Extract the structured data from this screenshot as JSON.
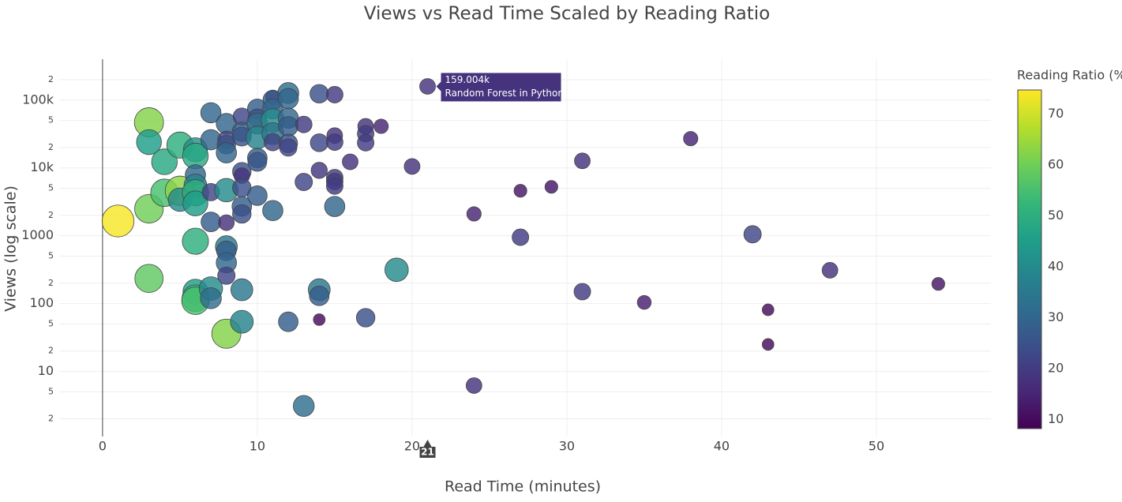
{
  "chart_data": {
    "type": "scatter",
    "title": "Views vs Read Time Scaled by Reading Ratio",
    "x_label": "Read Time (minutes)",
    "y_label": "Views (log scale)",
    "colorbar_title": "Reading Ratio (%",
    "log_y": true,
    "grid": true,
    "colorscale": "viridis",
    "xlim": [
      -2.8,
      57.4
    ],
    "xticks": [
      0,
      10,
      20,
      30,
      40,
      50
    ],
    "ylim": [
      1.1,
      400000
    ],
    "yticks": [
      2,
      5,
      10,
      {
        "value": 20,
        "label": "2"
      },
      {
        "value": 50,
        "label": "5"
      },
      100,
      {
        "value": 200,
        "label": "2"
      },
      {
        "value": 500,
        "label": "5"
      },
      1000,
      {
        "value": 2000,
        "label": "2"
      },
      {
        "value": 5000,
        "label": "5"
      },
      {
        "value": 10000,
        "label": "10k"
      },
      {
        "value": 20000,
        "label": "2"
      },
      {
        "value": 50000,
        "label": "5"
      },
      {
        "value": 100000,
        "label": "100k"
      },
      {
        "value": 200000,
        "label": "2"
      }
    ],
    "clim": [
      8.2,
      74.7
    ],
    "cticks": [
      10,
      20,
      30,
      40,
      50,
      60,
      70
    ],
    "x": [
      1,
      3,
      3,
      3,
      3,
      4,
      4,
      5,
      5,
      5,
      6,
      6,
      6,
      6,
      6,
      6,
      6,
      6,
      6,
      6,
      7,
      7,
      7,
      7,
      7,
      7,
      8,
      8,
      8,
      8,
      8,
      8,
      8,
      8,
      8,
      8,
      8,
      9,
      9,
      9,
      9,
      9,
      9,
      9,
      9,
      9,
      9,
      10,
      10,
      10,
      10,
      10,
      10,
      10,
      11,
      11,
      11,
      11,
      11,
      11,
      11,
      12,
      12,
      12,
      12,
      12,
      12,
      12,
      13,
      13,
      13,
      14,
      14,
      14,
      14,
      14,
      14,
      15,
      15,
      15,
      15,
      15,
      15,
      15,
      16,
      17,
      17,
      17,
      17,
      18,
      19,
      20,
      21,
      24,
      24,
      27,
      27,
      29,
      31,
      31,
      35,
      38,
      42,
      43,
      43,
      47,
      54
    ],
    "y": [
      1650,
      47000,
      24000,
      2500,
      235,
      12300,
      4300,
      21700,
      4600,
      3400,
      18500,
      15000,
      7900,
      5500,
      4300,
      3000,
      830,
      150,
      120,
      110,
      65000,
      26000,
      4400,
      1600,
      167,
      120,
      45000,
      26000,
      22000,
      16700,
      4700,
      1560,
      690,
      600,
      400,
      258,
      36,
      57000,
      34000,
      29000,
      8800,
      7700,
      5100,
      2700,
      2100,
      160,
      54,
      74000,
      54000,
      45000,
      28000,
      14000,
      12300,
      3900,
      110000,
      100000,
      74000,
      50000,
      32000,
      24000,
      2350,
      127000,
      105000,
      54000,
      41000,
      23000,
      20000,
      54,
      43700,
      6200,
      3.1,
      124000,
      23500,
      9200,
      160,
      130,
      58,
      120000,
      30000,
      24000,
      7200,
      6300,
      5400,
      2700,
      12300,
      41000,
      32000,
      23500,
      62,
      41000,
      315,
      10500,
      159004,
      2100,
      6.2,
      4600,
      950,
      5250,
      12700,
      150,
      104,
      27000,
      1050,
      81,
      25,
      310,
      195
    ],
    "ratio": [
      74,
      62,
      45,
      60,
      58,
      48,
      55,
      50,
      63,
      40,
      42,
      48,
      30,
      38,
      50,
      45,
      50,
      45,
      52,
      55,
      30,
      30,
      22,
      28,
      40,
      32,
      30,
      22,
      25,
      30,
      40,
      18,
      35,
      28,
      30,
      22,
      62,
      22,
      28,
      26,
      25,
      18,
      25,
      28,
      25,
      35,
      38,
      28,
      25,
      32,
      38,
      28,
      26,
      28,
      15,
      28,
      30,
      40,
      35,
      22,
      30,
      32,
      30,
      30,
      28,
      25,
      22,
      28,
      20,
      22,
      32,
      25,
      23,
      19,
      35,
      28,
      10,
      20,
      18,
      20,
      20,
      20,
      20,
      30,
      18,
      18,
      20,
      20,
      25,
      15,
      40,
      18,
      18,
      15,
      18,
      12,
      20,
      12,
      18,
      20,
      14,
      15,
      22,
      10,
      10,
      18,
      12
    ],
    "hover": {
      "x": 21,
      "y": 159004,
      "value_label": "159.004k",
      "name": "Random Forest in Python",
      "x_label": "21"
    }
  }
}
